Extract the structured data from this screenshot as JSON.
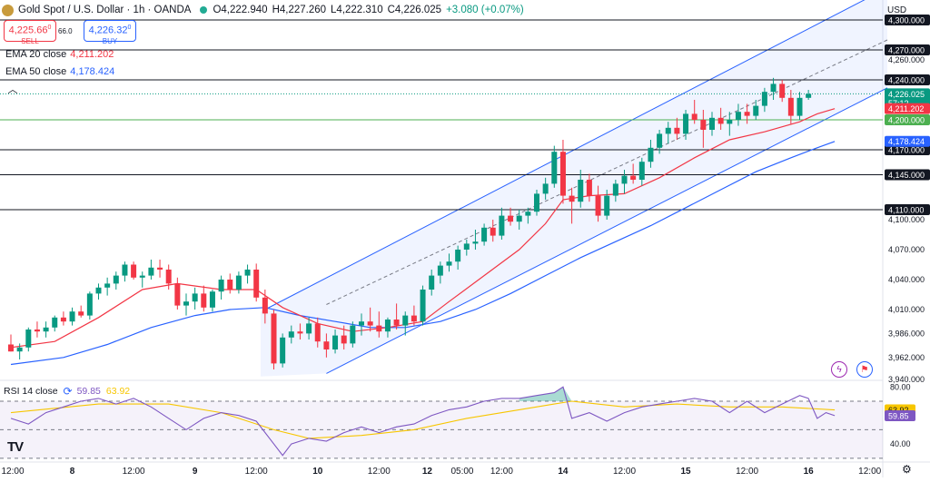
{
  "header": {
    "title": "Gold Spot / U.S. Dollar · 1h · OANDA",
    "ohlc": {
      "open": "O4,222.940",
      "high": "H4,227.260",
      "low": "L4,222.310",
      "close": "C4,226.025",
      "change": "+3.080 (+0.07%)"
    },
    "status_color": "#22ab94"
  },
  "trade": {
    "sell_price": "4,225.66",
    "sell_sup": "0",
    "sell_label": "SELL",
    "buy_price": "4,226.32",
    "buy_sup": "0",
    "buy_label": "BUY",
    "spread": "66.0"
  },
  "indicators": {
    "ema20_label": "EMA 20 close",
    "ema20_value": "4,211.202",
    "ema50_label": "EMA 50 close",
    "ema50_value": "4,178.424",
    "rsi_label": "RSI 14 close",
    "rsi_value": "59.85",
    "rsi_ma_value": "63.92"
  },
  "currency": "USD",
  "icons": {
    "collapse": "chevron-up-icon",
    "cycle": "cycle-icon",
    "lightning": "lightning-icon",
    "flag": "flag-icon",
    "settings": "gear-icon",
    "logo": "tradingview-logo"
  },
  "colors": {
    "up": "#089981",
    "down": "#f23645",
    "ema20": "#f23645",
    "ema50": "#2962ff",
    "rsi": "#7e57c2",
    "rsi_ma": "#f7c600",
    "channel": "#2962ff",
    "level_200": "#4caf50"
  },
  "chart_data": [
    {
      "type": "candlestick",
      "ylim": [
        3940,
        4320
      ],
      "x_range": [
        0,
        94
      ],
      "x_ticks": [
        {
          "x": 0,
          "label": "12:00"
        },
        {
          "x": 7,
          "label": "8"
        },
        {
          "x": 14,
          "label": "12:00"
        },
        {
          "x": 21,
          "label": "9"
        },
        {
          "x": 28,
          "label": "12:00"
        },
        {
          "x": 35,
          "label": "10"
        },
        {
          "x": 42,
          "label": "12:00"
        },
        {
          "x": 47.5,
          "label": "12"
        },
        {
          "x": 51.5,
          "label": "05:00"
        },
        {
          "x": 56,
          "label": "12:00"
        },
        {
          "x": 63,
          "label": "14"
        },
        {
          "x": 70,
          "label": "12:00"
        },
        {
          "x": 77,
          "label": "15"
        },
        {
          "x": 84,
          "label": "12:00"
        },
        {
          "x": 91,
          "label": "16"
        },
        {
          "x": 98,
          "label": "12:00"
        }
      ],
      "y_ticks": [
        3940,
        3962,
        3986,
        4010,
        4040,
        4070,
        4100,
        4260
      ],
      "levels": [
        {
          "price": 4300,
          "label": "4,300.000"
        },
        {
          "price": 4270,
          "label": "4,270.000"
        },
        {
          "price": 4240,
          "label": "4,240.000"
        },
        {
          "price": 4170,
          "label": "4,170.000"
        },
        {
          "price": 4145,
          "label": "4,145.000"
        },
        {
          "price": 4110,
          "label": "4,110.000"
        }
      ],
      "green_level": {
        "price": 4200,
        "label": "4,200.000"
      },
      "price_tags": [
        {
          "price": 4226.025,
          "label": "4,226.025",
          "sub": "57:12",
          "color": "#089981"
        },
        {
          "price": 4211.202,
          "label": "4,211.202",
          "color": "#f23645"
        },
        {
          "price": 4178.424,
          "label": "4,178.424",
          "color": "#2962ff"
        }
      ],
      "channel": {
        "lower": [
          {
            "x": 36,
            "y": 3946
          },
          {
            "x": 100,
            "y": 4232
          }
        ],
        "upper": [
          {
            "x": 29,
            "y": 4010
          },
          {
            "x": 100,
            "y": 4332
          }
        ],
        "mid": [
          {
            "x": 36,
            "y": 4015
          },
          {
            "x": 100,
            "y": 4280
          }
        ],
        "box_left": {
          "x": 28.5,
          "y_low": 3943
        }
      },
      "candles": [
        [
          3975,
          3985,
          3968,
          3968
        ],
        [
          3968,
          3976,
          3960,
          3972
        ],
        [
          3972,
          3992,
          3968,
          3990
        ],
        [
          3990,
          3998,
          3982,
          3988
        ],
        [
          3988,
          3998,
          3982,
          3992
        ],
        [
          3992,
          4004,
          3988,
          4002
        ],
        [
          4002,
          4008,
          3994,
          3998
        ],
        [
          3998,
          4012,
          3994,
          4008
        ],
        [
          4008,
          4014,
          4002,
          4004
        ],
        [
          4004,
          4028,
          4000,
          4026
        ],
        [
          4026,
          4036,
          4020,
          4032
        ],
        [
          4032,
          4042,
          4024,
          4036
        ],
        [
          4036,
          4048,
          4030,
          4044
        ],
        [
          4044,
          4058,
          4038,
          4055
        ],
        [
          4055,
          4058,
          4040,
          4042
        ],
        [
          4042,
          4048,
          4032,
          4044
        ],
        [
          4044,
          4060,
          4040,
          4052
        ],
        [
          4052,
          4060,
          4042,
          4050
        ],
        [
          4050,
          4055,
          4030,
          4036
        ],
        [
          4036,
          4042,
          4010,
          4014
        ],
        [
          4014,
          4026,
          4004,
          4018
        ],
        [
          4018,
          4032,
          4010,
          4026
        ],
        [
          4026,
          4034,
          4008,
          4012
        ],
        [
          4012,
          4030,
          4008,
          4028
        ],
        [
          4028,
          4044,
          4020,
          4040
        ],
        [
          4040,
          4046,
          4026,
          4030
        ],
        [
          4030,
          4048,
          4026,
          4044
        ],
        [
          4044,
          4055,
          4036,
          4050
        ],
        [
          4050,
          4056,
          4018,
          4022
        ],
        [
          4022,
          4030,
          3996,
          4006
        ],
        [
          4006,
          4010,
          3950,
          3956
        ],
        [
          3956,
          3986,
          3952,
          3982
        ],
        [
          3982,
          3994,
          3976,
          3988
        ],
        [
          3988,
          3996,
          3980,
          3986
        ],
        [
          3986,
          4002,
          3980,
          3996
        ],
        [
          3996,
          4002,
          3972,
          3978
        ],
        [
          3978,
          3986,
          3962,
          3970
        ],
        [
          3970,
          3990,
          3966,
          3984
        ],
        [
          3984,
          3994,
          3970,
          3976
        ],
        [
          3976,
          3998,
          3972,
          3994
        ],
        [
          3994,
          4006,
          3984,
          3998
        ],
        [
          3998,
          4012,
          3988,
          3994
        ],
        [
          3994,
          4008,
          3982,
          3988
        ],
        [
          3988,
          4002,
          3982,
          4000
        ],
        [
          4000,
          4016,
          3990,
          3994
        ],
        [
          3994,
          4008,
          3984,
          4004
        ],
        [
          4004,
          4014,
          3994,
          3998
        ],
        [
          3998,
          4034,
          3994,
          4030
        ],
        [
          4030,
          4050,
          4024,
          4044
        ],
        [
          4044,
          4058,
          4036,
          4054
        ],
        [
          4054,
          4066,
          4048,
          4058
        ],
        [
          4058,
          4074,
          4050,
          4070
        ],
        [
          4070,
          4080,
          4064,
          4076
        ],
        [
          4076,
          4090,
          4070,
          4078
        ],
        [
          4078,
          4096,
          4074,
          4092
        ],
        [
          4092,
          4100,
          4078,
          4084
        ],
        [
          4084,
          4112,
          4080,
          4104
        ],
        [
          4104,
          4112,
          4094,
          4098
        ],
        [
          4098,
          4110,
          4090,
          4104
        ],
        [
          4104,
          4112,
          4096,
          4108
        ],
        [
          4108,
          4130,
          4104,
          4126
        ],
        [
          4126,
          4142,
          4120,
          4136
        ],
        [
          4136,
          4174,
          4132,
          4168
        ],
        [
          4168,
          4180,
          4116,
          4124
        ],
        [
          4124,
          4132,
          4096,
          4118
        ],
        [
          4118,
          4150,
          4112,
          4140
        ],
        [
          4140,
          4146,
          4118,
          4124
        ],
        [
          4124,
          4134,
          4098,
          4104
        ],
        [
          4104,
          4130,
          4100,
          4124
        ],
        [
          4124,
          4140,
          4118,
          4136
        ],
        [
          4136,
          4150,
          4126,
          4144
        ],
        [
          4144,
          4156,
          4136,
          4140
        ],
        [
          4140,
          4162,
          4134,
          4158
        ],
        [
          4158,
          4180,
          4152,
          4172
        ],
        [
          4172,
          4190,
          4166,
          4186
        ],
        [
          4186,
          4198,
          4176,
          4192
        ],
        [
          4192,
          4202,
          4180,
          4186
        ],
        [
          4186,
          4210,
          4180,
          4206
        ],
        [
          4206,
          4220,
          4196,
          4200
        ],
        [
          4200,
          4210,
          4172,
          4190
        ],
        [
          4190,
          4208,
          4184,
          4202
        ],
        [
          4202,
          4212,
          4190,
          4196
        ],
        [
          4196,
          4208,
          4184,
          4200
        ],
        [
          4200,
          4216,
          4194,
          4208
        ],
        [
          4208,
          4216,
          4196,
          4204
        ],
        [
          4204,
          4220,
          4200,
          4214
        ],
        [
          4214,
          4232,
          4208,
          4228
        ],
        [
          4228,
          4242,
          4220,
          4236
        ],
        [
          4236,
          4240,
          4218,
          4222
        ],
        [
          4222,
          4230,
          4196,
          4204
        ],
        [
          4204,
          4228,
          4200,
          4222
        ],
        [
          4222,
          4230,
          4220,
          4226
        ]
      ],
      "ema20": [
        [
          0,
          3972
        ],
        [
          5,
          3978
        ],
        [
          10,
          4002
        ],
        [
          15,
          4030
        ],
        [
          19,
          4036
        ],
        [
          24,
          4030
        ],
        [
          28,
          4030
        ],
        [
          31,
          4012
        ],
        [
          35,
          3996
        ],
        [
          39,
          3988
        ],
        [
          43,
          3992
        ],
        [
          47,
          3998
        ],
        [
          50,
          4018
        ],
        [
          54,
          4044
        ],
        [
          58,
          4070
        ],
        [
          61,
          4096
        ],
        [
          63,
          4120
        ],
        [
          66,
          4124
        ],
        [
          70,
          4126
        ],
        [
          74,
          4142
        ],
        [
          78,
          4162
        ],
        [
          82,
          4180
        ],
        [
          86,
          4188
        ],
        [
          90,
          4198
        ],
        [
          92,
          4206
        ],
        [
          94,
          4211.2
        ]
      ],
      "ema50": [
        [
          0,
          3955
        ],
        [
          6,
          3962
        ],
        [
          11,
          3975
        ],
        [
          16,
          3992
        ],
        [
          21,
          4004
        ],
        [
          25,
          4010
        ],
        [
          29,
          4012
        ],
        [
          33,
          4004
        ],
        [
          37,
          3998
        ],
        [
          41,
          3992
        ],
        [
          45,
          3992
        ],
        [
          49,
          3998
        ],
        [
          53,
          4010
        ],
        [
          57,
          4026
        ],
        [
          61,
          4044
        ],
        [
          65,
          4062
        ],
        [
          69,
          4078
        ],
        [
          73,
          4094
        ],
        [
          77,
          4112
        ],
        [
          81,
          4130
        ],
        [
          85,
          4148
        ],
        [
          89,
          4162
        ],
        [
          92,
          4172
        ],
        [
          94,
          4178.4
        ]
      ]
    },
    {
      "type": "line",
      "title": "RSI 14 close",
      "ylim": [
        28,
        84
      ],
      "y_ticks": [
        {
          "value": 80,
          "label": "80.00"
        },
        {
          "value": 40,
          "label": "40.00"
        }
      ],
      "bands": {
        "upper": 70,
        "middle": 50,
        "lower": 30
      },
      "tags": [
        {
          "value": 63.92,
          "label": "63.92",
          "color": "#f7c600"
        },
        {
          "value": 59.85,
          "label": "59.85",
          "color": "#7e57c2"
        }
      ],
      "series": [
        {
          "values": [
            [
              0,
              58
            ],
            [
              2,
              54
            ],
            [
              4,
              62
            ],
            [
              6,
              66
            ],
            [
              8,
              70
            ],
            [
              10,
              72
            ],
            [
              12,
              68
            ],
            [
              14,
              72
            ],
            [
              16,
              66
            ],
            [
              18,
              58
            ],
            [
              20,
              50
            ],
            [
              22,
              58
            ],
            [
              24,
              62
            ],
            [
              26,
              60
            ],
            [
              28,
              56
            ],
            [
              30,
              40
            ],
            [
              31,
              32
            ],
            [
              32,
              40
            ],
            [
              34,
              44
            ],
            [
              36,
              42
            ],
            [
              38,
              48
            ],
            [
              40,
              52
            ],
            [
              42,
              48
            ],
            [
              44,
              52
            ],
            [
              46,
              54
            ],
            [
              48,
              60
            ],
            [
              50,
              64
            ],
            [
              52,
              66
            ],
            [
              54,
              70
            ],
            [
              56,
              72
            ],
            [
              58,
              72
            ],
            [
              60,
              74
            ],
            [
              62,
              76
            ],
            [
              63,
              80
            ],
            [
              64,
              58
            ],
            [
              66,
              62
            ],
            [
              68,
              56
            ],
            [
              70,
              62
            ],
            [
              72,
              66
            ],
            [
              74,
              68
            ],
            [
              76,
              70
            ],
            [
              78,
              72
            ],
            [
              80,
              70
            ],
            [
              82,
              62
            ],
            [
              84,
              70
            ],
            [
              86,
              62
            ],
            [
              88,
              68
            ],
            [
              90,
              74
            ],
            [
              91,
              72
            ],
            [
              92,
              58
            ],
            [
              93,
              62
            ],
            [
              94,
              59.85
            ]
          ]
        },
        {
          "values": [
            [
              0,
              62
            ],
            [
              10,
              68
            ],
            [
              18,
              68
            ],
            [
              24,
              62
            ],
            [
              30,
              50
            ],
            [
              34,
              44
            ],
            [
              40,
              46
            ],
            [
              46,
              50
            ],
            [
              52,
              58
            ],
            [
              58,
              64
            ],
            [
              62,
              68
            ],
            [
              64,
              70
            ],
            [
              70,
              66
            ],
            [
              76,
              68
            ],
            [
              82,
              66
            ],
            [
              88,
              66
            ],
            [
              94,
              63.92
            ]
          ]
        }
      ]
    }
  ]
}
